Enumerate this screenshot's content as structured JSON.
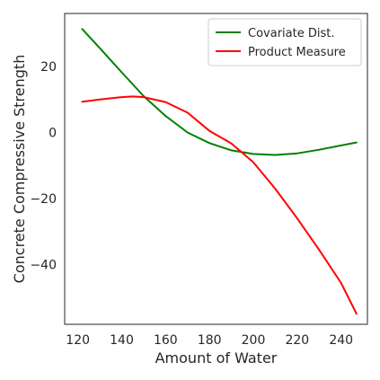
{
  "chart_data": {
    "type": "line",
    "title": "",
    "xlabel": "Amount of Water",
    "ylabel": "Concrete Compressive Strength",
    "xlim": [
      114,
      252
    ],
    "ylim": [
      -58,
      36
    ],
    "xticks": [
      120,
      140,
      160,
      180,
      200,
      220,
      240
    ],
    "yticks": [
      20,
      0,
      -20,
      -40
    ],
    "grid": false,
    "legend_position": "top-right",
    "series": [
      {
        "name": "Covariate Dist.",
        "color": "#008000",
        "x": [
          122,
          130,
          140,
          150,
          160,
          170,
          180,
          190,
          200,
          210,
          220,
          230,
          240,
          247
        ],
        "y": [
          31.3,
          25.5,
          18.2,
          11.0,
          5.0,
          0.0,
          -3.2,
          -5.4,
          -6.5,
          -6.8,
          -6.3,
          -5.2,
          -3.9,
          -3.0
        ]
      },
      {
        "name": "Product Measure",
        "color": "#ff0000",
        "x": [
          122,
          130,
          140,
          145,
          150,
          160,
          170,
          180,
          190,
          200,
          210,
          220,
          230,
          240,
          247
        ],
        "y": [
          9.3,
          10.0,
          10.7,
          10.9,
          10.7,
          9.2,
          6.0,
          0.5,
          -3.3,
          -9.0,
          -17.0,
          -26.0,
          -35.5,
          -45.5,
          -54.8
        ]
      }
    ]
  }
}
